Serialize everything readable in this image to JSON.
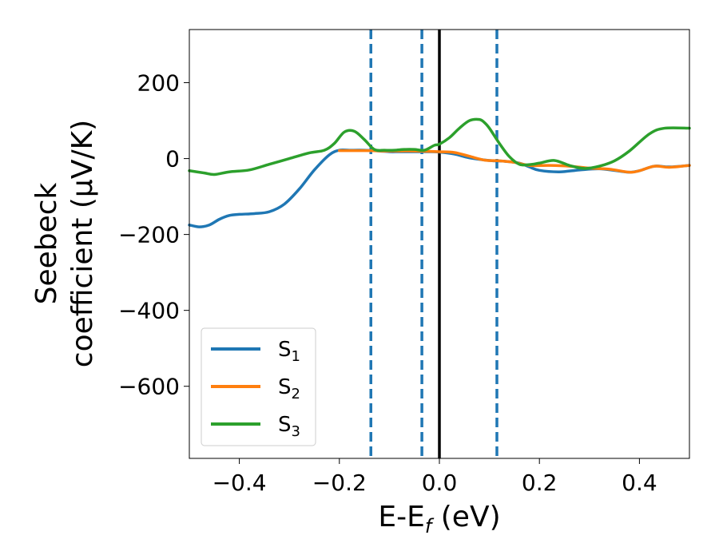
{
  "chart_data": {
    "type": "line",
    "xlabel": "E-E",
    "xlabel_sub": "f",
    "xlabel_tail": " (eV)",
    "ylabel_line1": "Seebeck",
    "ylabel_line2": "coefficient  (μV/K)",
    "xlim": [
      -0.5,
      0.5
    ],
    "ylim": [
      -790,
      340
    ],
    "xticks": [
      -0.4,
      -0.2,
      0.0,
      0.2,
      0.4
    ],
    "xtick_labels": [
      "−0.4",
      "−0.2",
      "0.0",
      "0.2",
      "0.4"
    ],
    "yticks": [
      200,
      0,
      -200,
      -400,
      -600
    ],
    "ytick_labels": [
      "200",
      "0",
      "−200",
      "−400",
      "−600"
    ],
    "grid": false,
    "legend_position": "lower-left",
    "vlines": [
      {
        "x": -0.137,
        "style": "dashed",
        "color": "#1f77b4"
      },
      {
        "x": -0.035,
        "style": "dashed",
        "color": "#1f77b4"
      },
      {
        "x": 0.0,
        "style": "solid",
        "color": "#000000"
      },
      {
        "x": 0.115,
        "style": "dashed",
        "color": "#1f77b4"
      }
    ],
    "series": [
      {
        "name": "S",
        "sub": "1",
        "color": "#1f77b4",
        "x": [
          -0.5,
          -0.48,
          -0.46,
          -0.44,
          -0.42,
          -0.4,
          -0.37,
          -0.34,
          -0.31,
          -0.28,
          -0.25,
          -0.22,
          -0.2,
          -0.18,
          -0.15,
          -0.12,
          -0.1,
          -0.08,
          -0.06,
          -0.04,
          -0.02,
          0.0,
          0.03,
          0.06,
          0.1,
          0.13,
          0.16,
          0.18,
          0.2,
          0.24,
          0.28,
          0.32,
          0.36,
          0.38,
          0.4,
          0.43,
          0.46,
          0.5
        ],
        "y": [
          -175,
          -180,
          -175,
          -160,
          -150,
          -147,
          -145,
          -140,
          -120,
          -80,
          -30,
          10,
          22,
          22,
          22,
          20,
          18,
          18,
          18,
          18,
          18,
          17,
          12,
          2,
          -5,
          -7,
          -12,
          -22,
          -31,
          -35,
          -30,
          -27,
          -33,
          -36,
          -32,
          -20,
          -22,
          -18
        ]
      },
      {
        "name": "S",
        "sub": "2",
        "color": "#ff7f0e",
        "x": [
          -0.2,
          -0.17,
          -0.14,
          -0.11,
          -0.08,
          -0.05,
          -0.02,
          0.0,
          0.03,
          0.06,
          0.09,
          0.12,
          0.15,
          0.18,
          0.22,
          0.26,
          0.3,
          0.34,
          0.38,
          0.4,
          0.43,
          0.46,
          0.5
        ],
        "y": [
          21,
          21,
          21,
          20,
          20,
          20,
          19,
          18,
          16,
          6,
          -4,
          -6,
          -10,
          -18,
          -18,
          -20,
          -25,
          -28,
          -36,
          -32,
          -20,
          -23,
          -18
        ]
      },
      {
        "name": "S",
        "sub": "3",
        "color": "#2ca02c",
        "x": [
          -0.5,
          -0.47,
          -0.45,
          -0.42,
          -0.38,
          -0.34,
          -0.3,
          -0.26,
          -0.23,
          -0.21,
          -0.19,
          -0.17,
          -0.15,
          -0.13,
          -0.11,
          -0.09,
          -0.07,
          -0.05,
          -0.03,
          -0.01,
          0.0,
          0.02,
          0.04,
          0.06,
          0.08,
          0.09,
          0.1,
          0.12,
          0.14,
          0.16,
          0.18,
          0.2,
          0.23,
          0.26,
          0.29,
          0.32,
          0.35,
          0.38,
          0.42,
          0.45,
          0.5
        ],
        "y": [
          -32,
          -38,
          -42,
          -35,
          -30,
          -15,
          0,
          15,
          22,
          40,
          70,
          72,
          50,
          24,
          22,
          22,
          24,
          24,
          22,
          35,
          38,
          55,
          80,
          100,
          103,
          95,
          80,
          40,
          5,
          -15,
          -16,
          -12,
          -5,
          -18,
          -26,
          -20,
          -6,
          20,
          65,
          80,
          80
        ]
      }
    ]
  }
}
